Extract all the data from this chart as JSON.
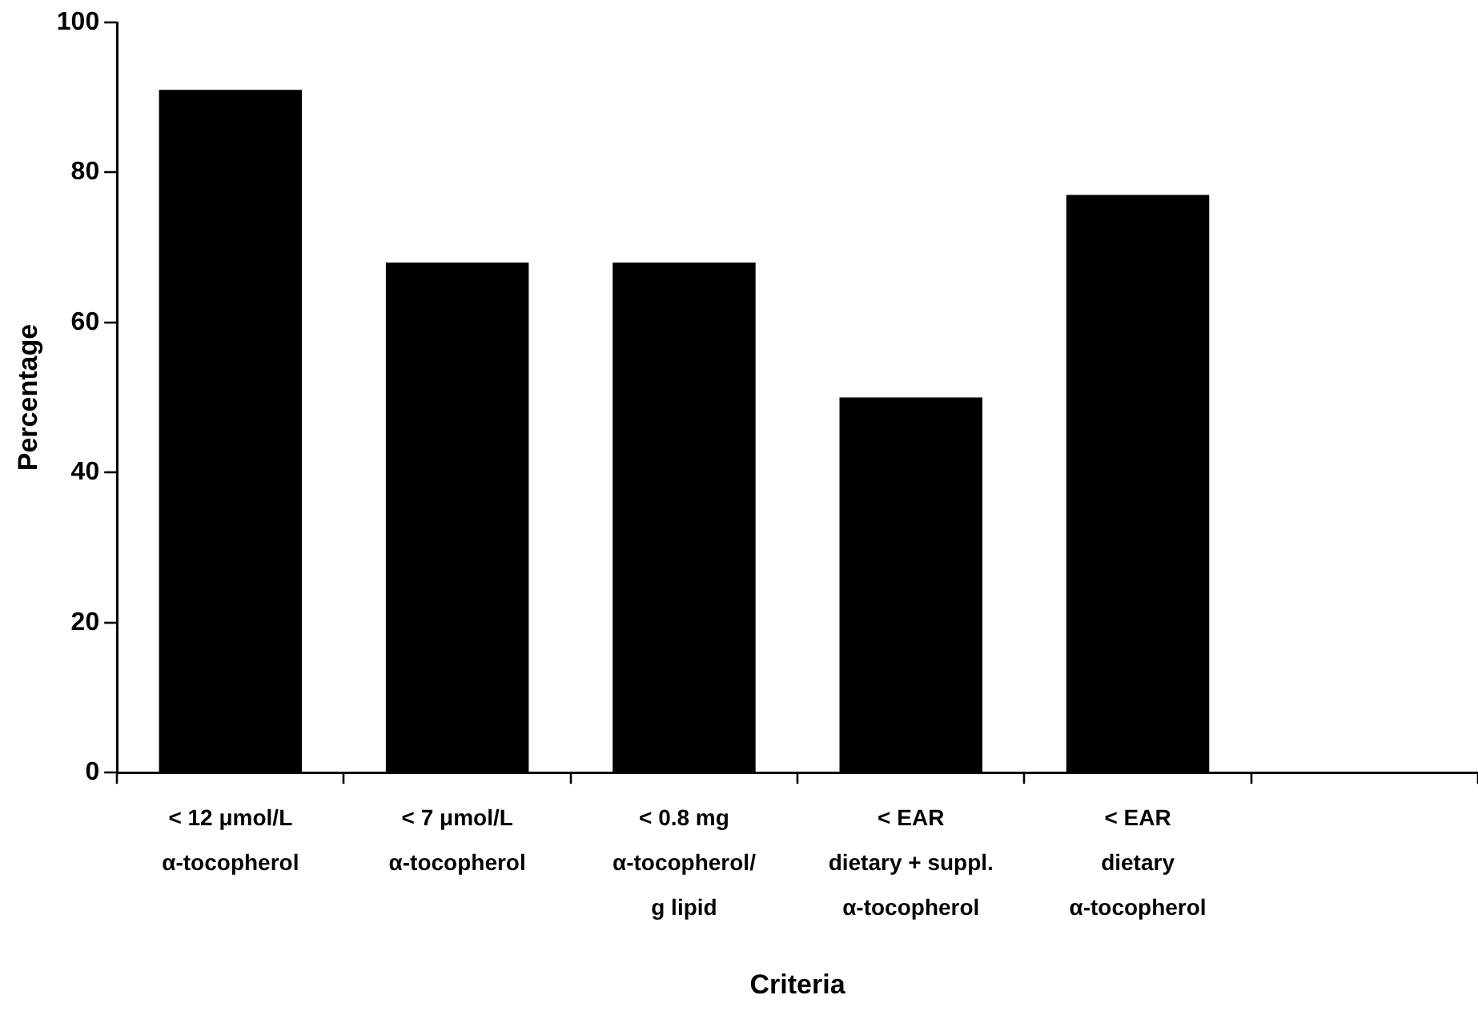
{
  "chart_data": {
    "type": "bar",
    "xlabel": "Criteria",
    "ylabel": "Percentage",
    "categories": [
      "< 12 μmol/L\nα-tocopherol",
      "< 7 μmol/L\nα-tocopherol",
      "< 0.8 mg\nα-tocopherol/\ng lipid",
      "< EAR\ndietary + suppl.\nα-tocopherol",
      "< EAR\ndietary\nα-tocopherol",
      null
    ],
    "values": [
      91,
      68,
      68,
      50,
      77,
      null
    ],
    "color": "#000000",
    "ylim": [
      0,
      100
    ],
    "yticks": [
      0,
      20,
      40,
      60,
      80,
      100
    ],
    "grid": false,
    "legend": false
  }
}
